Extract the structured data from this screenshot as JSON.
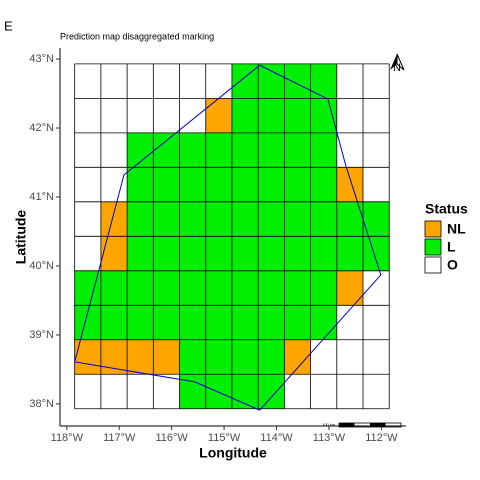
{
  "chart_data": {
    "type": "grid_map",
    "tag": "E",
    "title": "Prediction map disaggregated marking",
    "x_label": "Longitude",
    "y_label": "Latitude",
    "xlim": [
      -118.13,
      -111.53
    ],
    "ylim": [
      37.68,
      43.16
    ],
    "xticks": [
      {
        "value": -118,
        "label": "118°W"
      },
      {
        "value": -117,
        "label": "117°W"
      },
      {
        "value": -116,
        "label": "116°W"
      },
      {
        "value": -115,
        "label": "115°W"
      },
      {
        "value": -114,
        "label": "114°W"
      },
      {
        "value": -113,
        "label": "113°W"
      },
      {
        "value": -112,
        "label": "112°W"
      }
    ],
    "yticks": [
      {
        "value": 38,
        "label": "38°N"
      },
      {
        "value": 39,
        "label": "39°N"
      },
      {
        "value": 40,
        "label": "40°N"
      },
      {
        "value": 41,
        "label": "41°N"
      },
      {
        "value": 42,
        "label": "42°N"
      },
      {
        "value": 43,
        "label": "43°N"
      }
    ],
    "lon_edges": [
      -117.85,
      -117.35,
      -116.85,
      -116.35,
      -115.85,
      -115.35,
      -114.85,
      -114.35,
      -113.85,
      -113.35,
      -112.85,
      -112.35,
      -111.85
    ],
    "lat_edges": [
      42.93,
      42.43,
      41.93,
      41.43,
      40.93,
      40.43,
      39.93,
      39.43,
      38.93,
      38.43,
      37.93
    ],
    "cells": [
      [
        "O",
        "O",
        "O",
        "O",
        "O",
        "O",
        "L",
        "L",
        "L",
        "L",
        "O",
        "O"
      ],
      [
        "O",
        "O",
        "O",
        "O",
        "O",
        "NL",
        "L",
        "L",
        "L",
        "L",
        "O",
        "O"
      ],
      [
        "O",
        "O",
        "L",
        "L",
        "L",
        "L",
        "L",
        "L",
        "L",
        "L",
        "O",
        "O"
      ],
      [
        "O",
        "O",
        "L",
        "L",
        "L",
        "L",
        "L",
        "L",
        "L",
        "L",
        "NL",
        "O"
      ],
      [
        "O",
        "NL",
        "L",
        "L",
        "L",
        "L",
        "L",
        "L",
        "L",
        "L",
        "L",
        "L"
      ],
      [
        "O",
        "NL",
        "L",
        "L",
        "L",
        "L",
        "L",
        "L",
        "L",
        "L",
        "L",
        "L"
      ],
      [
        "L",
        "L",
        "L",
        "L",
        "L",
        "L",
        "L",
        "L",
        "L",
        "L",
        "NL",
        "O"
      ],
      [
        "L",
        "L",
        "L",
        "L",
        "L",
        "L",
        "L",
        "L",
        "L",
        "L",
        "O",
        "O"
      ],
      [
        "NL",
        "NL",
        "NL",
        "NL",
        "L",
        "L",
        "L",
        "L",
        "NL",
        "O",
        "O",
        "O"
      ],
      [
        "O",
        "O",
        "O",
        "O",
        "L",
        "L",
        "L",
        "L",
        "O",
        "O",
        "O",
        "O"
      ]
    ],
    "legend_title": "Status",
    "series": [
      {
        "name": "NL",
        "color": "#ffa500"
      },
      {
        "name": "L",
        "color": "#00ee00"
      },
      {
        "name": "O",
        "color": "#ffffff"
      }
    ],
    "boundary": {
      "color": "#0000cc",
      "lon": [
        -114.32,
        -113.02,
        -112.68,
        -112.01,
        -114.32,
        -115.56,
        -117.85,
        -116.91,
        -114.32
      ],
      "lat": [
        42.91,
        42.42,
        41.46,
        39.87,
        37.91,
        38.32,
        38.61,
        41.32,
        42.91
      ]
    },
    "north_label": "N",
    "scale_label": "100 km"
  }
}
